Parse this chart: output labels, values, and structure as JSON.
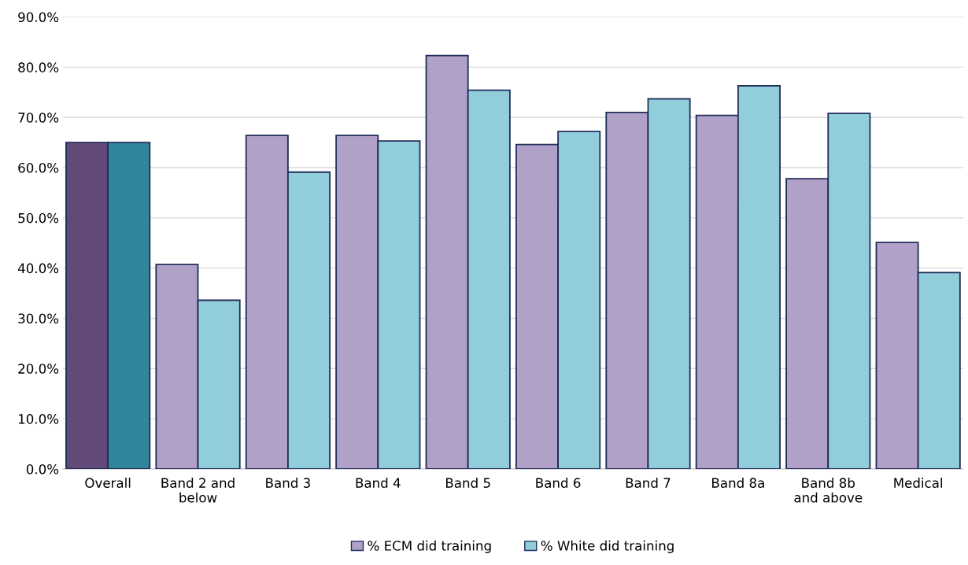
{
  "chart_data": {
    "type": "bar",
    "categories": [
      "Overall",
      "Band 2 and\nbelow",
      "Band 3",
      "Band 4",
      "Band 5",
      "Band 6",
      "Band 7",
      "Band 8a",
      "Band 8b\nand above",
      "Medical"
    ],
    "series": [
      {
        "name": "% ECM did training",
        "color": "#b1a0c7",
        "colors": [
          "#614a7a",
          "#b1a0c7",
          "#b1a0c7",
          "#b1a0c7",
          "#b1a0c7",
          "#b1a0c7",
          "#b1a0c7",
          "#b1a0c7",
          "#b1a0c7",
          "#b1a0c7"
        ],
        "values": [
          65.0,
          40.7,
          66.4,
          66.4,
          82.3,
          64.6,
          71.0,
          70.4,
          57.8,
          45.1
        ]
      },
      {
        "name": "% White did training",
        "color": "#92cddc",
        "colors": [
          "#31869b",
          "#92cddc",
          "#92cddc",
          "#92cddc",
          "#92cddc",
          "#92cddc",
          "#92cddc",
          "#92cddc",
          "#92cddc",
          "#92cddc"
        ],
        "values": [
          65.0,
          33.6,
          59.1,
          65.3,
          75.4,
          67.2,
          73.7,
          76.3,
          70.8,
          39.1
        ]
      }
    ],
    "ylim": [
      0,
      90
    ],
    "yticks": [
      {
        "value": 0,
        "label": "0.0%"
      },
      {
        "value": 10,
        "label": "10.0%"
      },
      {
        "value": 20,
        "label": "20.0%"
      },
      {
        "value": 30,
        "label": "30.0%"
      },
      {
        "value": 40,
        "label": "40.0%"
      },
      {
        "value": 50,
        "label": "50.0%"
      },
      {
        "value": 60,
        "label": "60.0%"
      },
      {
        "value": 70,
        "label": "70.0%"
      },
      {
        "value": 80,
        "label": "80.0%"
      },
      {
        "value": 90,
        "label": "90.0%"
      }
    ],
    "grid": "y",
    "legend": "bottom"
  }
}
